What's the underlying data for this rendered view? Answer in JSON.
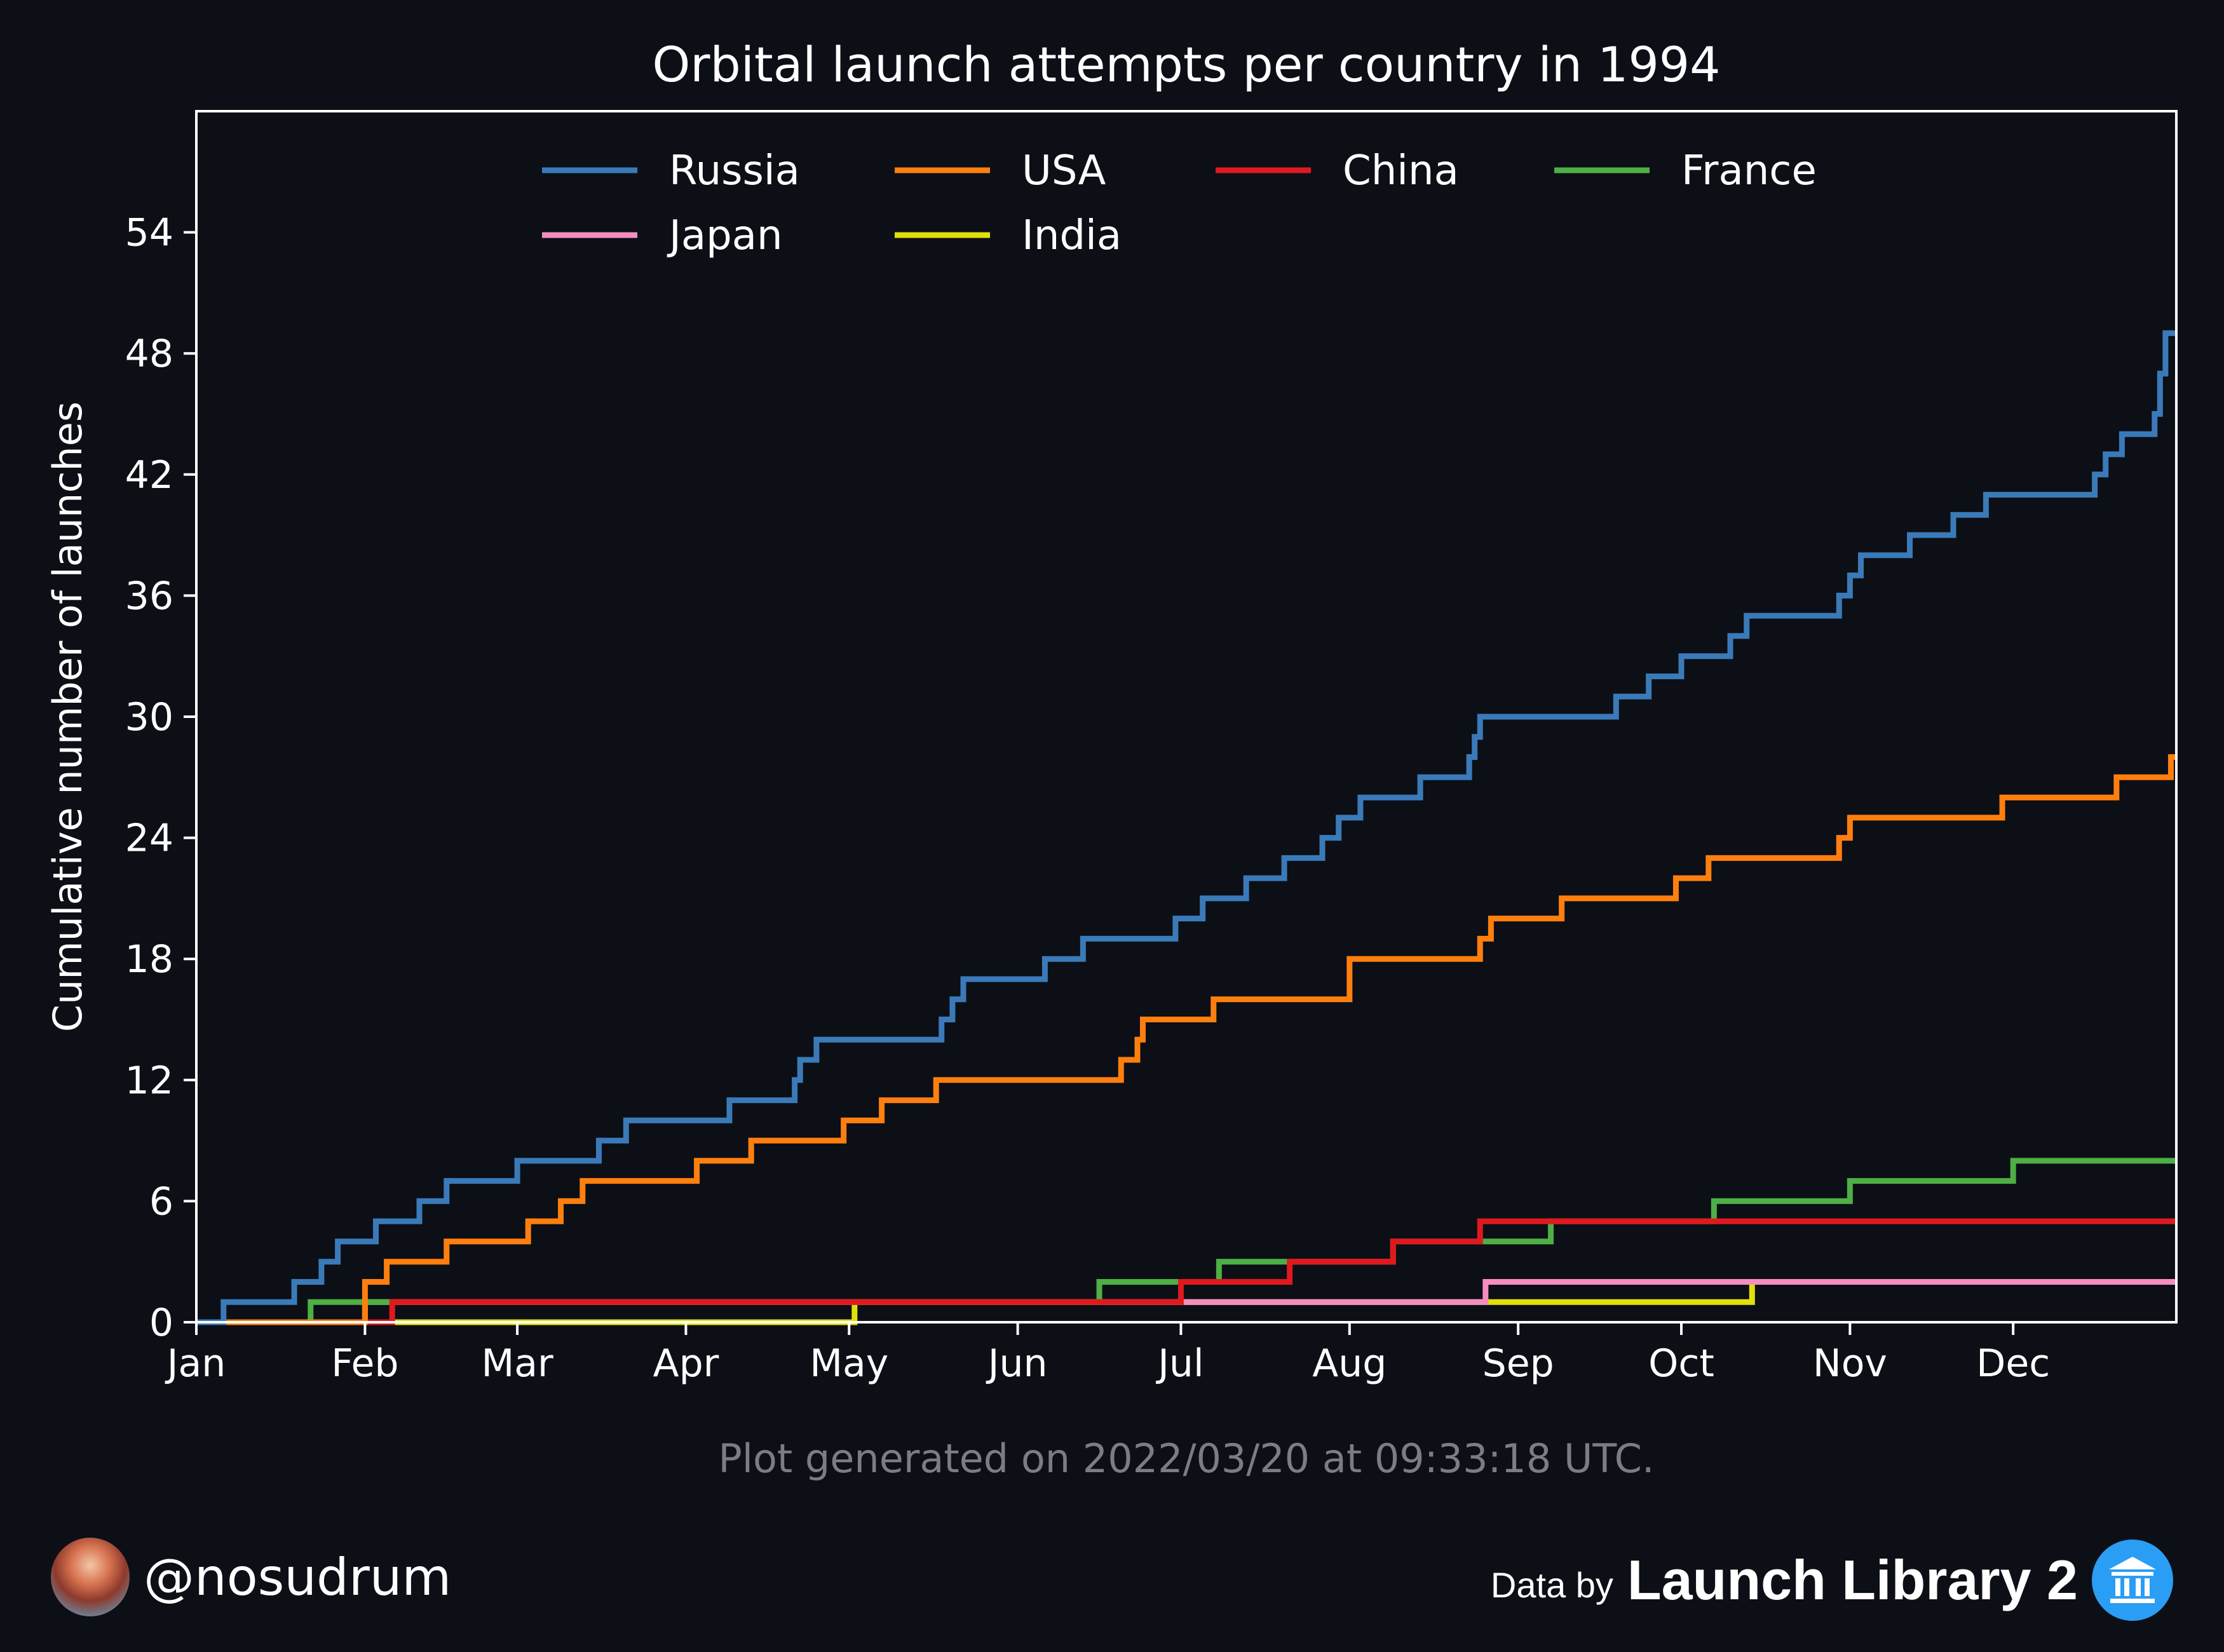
{
  "chart_data": {
    "type": "line",
    "step": "post",
    "title": "Orbital launch attempts per country in 1994",
    "xlabel": "",
    "ylabel": "Cumulative number of launches",
    "xlim": [
      "1994-01-01",
      "1994-12-31"
    ],
    "ylim": [
      0,
      60
    ],
    "yticks": [
      0,
      6,
      12,
      18,
      24,
      30,
      36,
      42,
      48,
      54
    ],
    "xticks": [
      {
        "date": "1994-01-01",
        "label": "Jan"
      },
      {
        "date": "1994-02-01",
        "label": "Feb"
      },
      {
        "date": "1994-03-01",
        "label": "Mar"
      },
      {
        "date": "1994-04-01",
        "label": "Apr"
      },
      {
        "date": "1994-05-01",
        "label": "May"
      },
      {
        "date": "1994-06-01",
        "label": "Jun"
      },
      {
        "date": "1994-07-01",
        "label": "Jul"
      },
      {
        "date": "1994-08-01",
        "label": "Aug"
      },
      {
        "date": "1994-09-01",
        "label": "Sep"
      },
      {
        "date": "1994-10-01",
        "label": "Oct"
      },
      {
        "date": "1994-11-01",
        "label": "Nov"
      },
      {
        "date": "1994-12-01",
        "label": "Dec"
      }
    ],
    "grid": false,
    "legend": "top-center",
    "series": [
      {
        "name": "Russia",
        "color": "#3a7ab8",
        "dates": [
          "1994-01-06",
          "1994-01-19",
          "1994-01-24",
          "1994-01-27",
          "1994-02-03",
          "1994-02-11",
          "1994-02-16",
          "1994-03-01",
          "1994-03-16",
          "1994-03-21",
          "1994-04-09",
          "1994-04-21",
          "1994-04-22",
          "1994-04-25",
          "1994-05-18",
          "1994-05-20",
          "1994-05-22",
          "1994-06-06",
          "1994-06-13",
          "1994-06-30",
          "1994-07-05",
          "1994-07-13",
          "1994-07-20",
          "1994-07-27",
          "1994-07-30",
          "1994-08-03",
          "1994-08-14",
          "1994-08-23",
          "1994-08-24",
          "1994-08-25",
          "1994-09-19",
          "1994-09-25",
          "1994-10-01",
          "1994-10-10",
          "1994-10-13",
          "1994-10-30",
          "1994-11-01",
          "1994-11-03",
          "1994-11-12",
          "1994-11-20",
          "1994-11-26",
          "1994-12-16",
          "1994-12-18",
          "1994-12-21",
          "1994-12-27",
          "1994-12-28",
          "1994-12-29"
        ],
        "values": [
          1,
          2,
          3,
          4,
          5,
          6,
          7,
          8,
          9,
          10,
          11,
          12,
          13,
          14,
          15,
          16,
          17,
          18,
          19,
          20,
          21,
          22,
          23,
          24,
          25,
          26,
          27,
          28,
          29,
          30,
          31,
          32,
          33,
          34,
          35,
          36,
          37,
          38,
          39,
          40,
          41,
          42,
          43,
          44,
          45,
          47,
          49
        ]
      },
      {
        "name": "USA",
        "color": "#ff7f0e",
        "dates": [
          "1994-02-01",
          "1994-02-05",
          "1994-02-16",
          "1994-03-03",
          "1994-03-09",
          "1994-03-13",
          "1994-04-03",
          "1994-04-13",
          "1994-04-30",
          "1994-05-07",
          "1994-05-17",
          "1994-06-20",
          "1994-06-23",
          "1994-06-24",
          "1994-07-07",
          "1994-08-01",
          "1994-08-25",
          "1994-08-27",
          "1994-09-09",
          "1994-09-30",
          "1994-10-06",
          "1994-10-30",
          "1994-11-01",
          "1994-11-29",
          "1994-12-20",
          "1994-12-30"
        ],
        "values": [
          2,
          3,
          4,
          5,
          6,
          7,
          8,
          9,
          10,
          11,
          12,
          13,
          14,
          15,
          16,
          18,
          19,
          20,
          21,
          22,
          23,
          24,
          25,
          26,
          27,
          28
        ]
      },
      {
        "name": "China",
        "color": "#e0191f",
        "dates": [
          "1994-02-06",
          "1994-07-01",
          "1994-07-21",
          "1994-08-09",
          "1994-08-25",
          "1994-11-28"
        ],
        "values": [
          1,
          2,
          3,
          4,
          5,
          5
        ]
      },
      {
        "name": "France",
        "color": "#4daf45",
        "dates": [
          "1994-01-22",
          "1994-06-16",
          "1994-07-08",
          "1994-08-09",
          "1994-09-07",
          "1994-10-07",
          "1994-11-01",
          "1994-12-01"
        ],
        "values": [
          1,
          2,
          3,
          4,
          5,
          6,
          7,
          8
        ]
      },
      {
        "name": "Japan",
        "color": "#f58ec0",
        "dates": [
          "1994-02-01",
          "1994-08-26"
        ],
        "values": [
          1,
          2
        ]
      },
      {
        "name": "India",
        "color": "#e0e00b",
        "dates": [
          "1994-05-02",
          "1994-10-14"
        ],
        "values": [
          1,
          2
        ]
      }
    ]
  },
  "footer": {
    "generated": "Plot generated on 2022/03/20 at 09:33:18 UTC.",
    "handle": "@nosudrum",
    "data_by": "Data by",
    "source": "Launch Library 2"
  },
  "colors": {
    "background": "#0c0f16",
    "text": "#ffffff",
    "muted": "#7a7d82"
  }
}
